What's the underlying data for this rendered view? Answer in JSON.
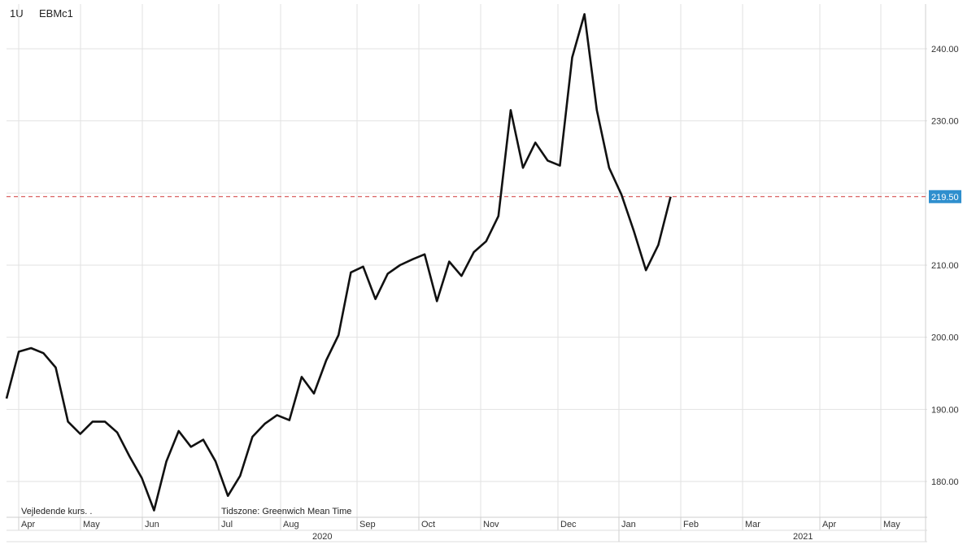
{
  "header": {
    "interval": "1U",
    "symbol": "EBMc1"
  },
  "footer": {
    "note": "Vejledende kurs. .",
    "timezone": "Tidszone: Greenwich Mean Time"
  },
  "colors": {
    "line": "#111111",
    "grid": "#e2e2e2",
    "ref_line": "#d23a3a",
    "price_tag": "#2f8fce"
  },
  "chart_data": {
    "type": "line",
    "title": "",
    "xlabel": "",
    "ylabel": "",
    "ylim": [
      175,
      246
    ],
    "y_ticks": [
      "180.00",
      "190.00",
      "200.00",
      "210.00",
      "220.00",
      "230.00",
      "240.00"
    ],
    "y_tick_values": [
      180,
      190,
      200,
      210,
      220,
      230,
      240
    ],
    "x_tick_labels": [
      "Apr",
      "May",
      "Jun",
      "Jul",
      "Aug",
      "Sep",
      "Oct",
      "Nov",
      "Dec",
      "Jan",
      "Feb",
      "Mar",
      "Apr",
      "May"
    ],
    "x_year_labels": [
      "2020",
      "2021"
    ],
    "last_price": 219.5,
    "last_price_label": "219.50",
    "reference_line": 219.5,
    "grid": true,
    "series": [
      {
        "values": [
          191.5,
          198.0,
          198.5,
          197.8,
          195.8,
          188.3,
          186.6,
          188.3,
          188.3,
          186.8,
          183.5,
          180.5,
          176.0,
          182.8,
          187.0,
          184.8,
          185.8,
          182.8,
          178.0,
          180.8,
          186.2,
          188.0,
          189.2,
          188.5,
          194.5,
          192.2,
          196.8,
          200.3,
          209.0,
          209.8,
          205.3,
          208.8,
          210.0,
          210.8,
          211.5,
          205.0,
          210.5,
          208.5,
          211.8,
          213.3,
          216.8,
          231.5,
          223.5,
          227.0,
          224.5,
          223.8,
          238.8,
          244.8,
          231.5,
          223.5,
          219.8,
          214.8,
          209.3,
          212.8,
          219.5
        ]
      }
    ]
  }
}
